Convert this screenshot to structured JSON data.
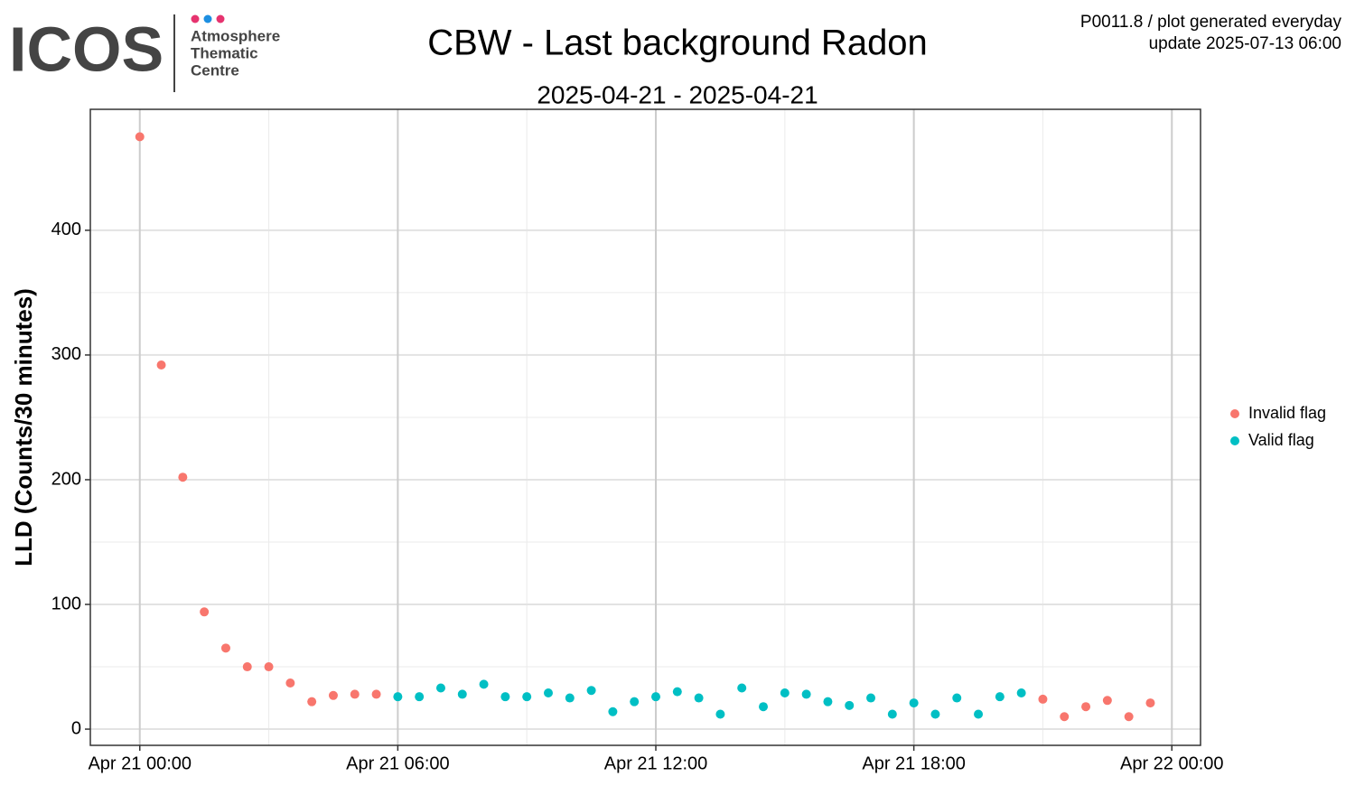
{
  "header": {
    "logo": "ICOS",
    "logo_lines": [
      "Atmosphere",
      "Thematic",
      "Centre"
    ],
    "info_lines": [
      "P0011.8 / plot generated everyday",
      "update  2025-07-13 06:00"
    ]
  },
  "chart_data": {
    "type": "scatter",
    "title": "CBW - Last background Radon",
    "subtitle": "2025-04-21 - 2025-04-21",
    "y_label": "LLD (Counts/30 minutes)",
    "xlim": [
      "2025-04-20 22:51",
      "2025-04-22 00:40"
    ],
    "xticks": [
      {
        "value": "2025-04-21 00:00",
        "label": "Apr 21 00:00"
      },
      {
        "value": "2025-04-21 06:00",
        "label": "Apr 21 06:00"
      },
      {
        "value": "2025-04-21 12:00",
        "label": "Apr 21 12:00"
      },
      {
        "value": "2025-04-21 18:00",
        "label": "Apr 21 18:00"
      },
      {
        "value": "2025-04-22 00:00",
        "label": "Apr 22 00:00"
      }
    ],
    "ylim": [
      -13,
      497
    ],
    "yticks": [
      0,
      100,
      200,
      300,
      400
    ],
    "grid": true,
    "series": [
      {
        "name": "Invalid flag",
        "color": "#f8766d",
        "x": [
          "2025-04-21 00:00",
          "2025-04-21 00:30",
          "2025-04-21 01:00",
          "2025-04-21 01:30",
          "2025-04-21 02:00",
          "2025-04-21 02:30",
          "2025-04-21 03:00",
          "2025-04-21 03:30",
          "2025-04-21 04:00",
          "2025-04-21 04:30",
          "2025-04-21 05:00",
          "2025-04-21 05:30",
          "2025-04-21 21:00",
          "2025-04-21 21:30",
          "2025-04-21 22:00",
          "2025-04-21 22:30",
          "2025-04-21 23:00",
          "2025-04-21 23:30"
        ],
        "values": [
          475,
          292,
          202,
          94,
          65,
          50,
          50,
          37,
          22,
          27,
          28,
          28,
          24,
          10,
          18,
          23,
          10,
          21
        ]
      },
      {
        "name": "Valid flag",
        "color": "#00bfc4",
        "x": [
          "2025-04-21 06:00",
          "2025-04-21 06:30",
          "2025-04-21 07:00",
          "2025-04-21 07:30",
          "2025-04-21 08:00",
          "2025-04-21 08:30",
          "2025-04-21 09:00",
          "2025-04-21 09:30",
          "2025-04-21 10:00",
          "2025-04-21 10:30",
          "2025-04-21 11:00",
          "2025-04-21 11:30",
          "2025-04-21 12:00",
          "2025-04-21 12:30",
          "2025-04-21 13:00",
          "2025-04-21 13:30",
          "2025-04-21 14:00",
          "2025-04-21 14:30",
          "2025-04-21 15:00",
          "2025-04-21 15:30",
          "2025-04-21 16:00",
          "2025-04-21 16:30",
          "2025-04-21 17:00",
          "2025-04-21 17:30",
          "2025-04-21 18:00",
          "2025-04-21 18:30",
          "2025-04-21 19:00",
          "2025-04-21 19:30",
          "2025-04-21 20:00",
          "2025-04-21 20:30"
        ],
        "values": [
          26,
          26,
          33,
          28,
          36,
          26,
          26,
          29,
          25,
          31,
          14,
          22,
          26,
          30,
          25,
          12,
          33,
          18,
          29,
          28,
          22,
          19,
          25,
          12,
          21,
          12,
          25,
          12,
          26,
          29
        ]
      }
    ]
  }
}
